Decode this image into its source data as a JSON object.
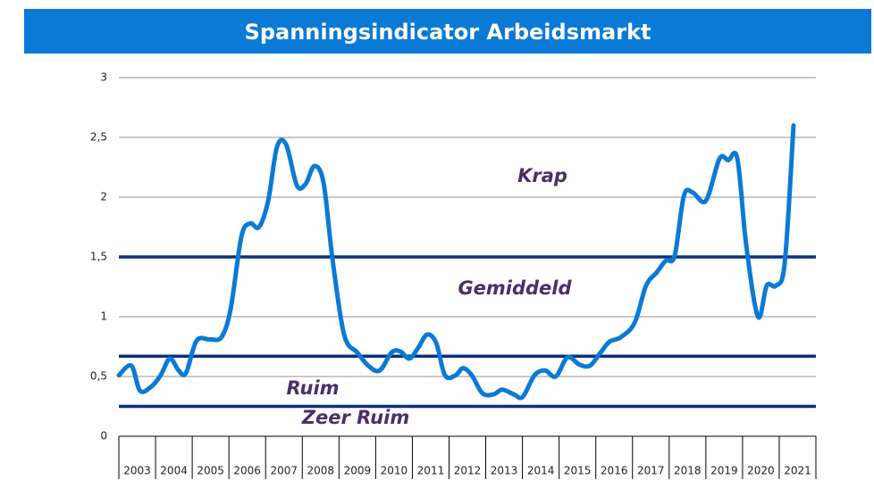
{
  "chart_data": {
    "type": "line",
    "title": "Spanningsindicator Arbeidsmarkt",
    "categories": [
      "2003",
      "2004",
      "2005",
      "2006",
      "2007",
      "2008",
      "2009",
      "2010",
      "2011",
      "2012",
      "2013",
      "2014",
      "2015",
      "2016",
      "2017",
      "2018",
      "2019",
      "2020",
      "2021"
    ],
    "xlim": [
      2003,
      2022
    ],
    "ylim": [
      0,
      3
    ],
    "yticks": [
      0,
      {
        "value": 0.5,
        "label": "0,5"
      },
      1,
      {
        "value": 1.5,
        "label": "1,5"
      },
      2,
      {
        "value": 2.5,
        "label": "2,5"
      },
      3
    ],
    "grid": true,
    "thresholds": [
      1.5,
      0.67,
      0.25
    ],
    "threshold_color": "#0b2f7a",
    "zone_labels": [
      "Krap",
      "Gemiddeld",
      "Ruim",
      "Zeer Ruim"
    ],
    "series": [
      {
        "name": "Spanningsindicator",
        "color": "#0a7ad6",
        "x": [
          2003.0,
          2003.34,
          2003.58,
          2003.9,
          2004.14,
          2004.39,
          2004.63,
          2004.83,
          2005.12,
          2005.48,
          2005.8,
          2006.05,
          2006.34,
          2006.58,
          2006.82,
          2007.07,
          2007.31,
          2007.56,
          2007.85,
          2008.09,
          2008.33,
          2008.58,
          2008.82,
          2009.14,
          2009.5,
          2009.8,
          2010.11,
          2010.43,
          2010.67,
          2010.92,
          2011.16,
          2011.4,
          2011.65,
          2011.89,
          2012.18,
          2012.38,
          2012.62,
          2012.91,
          2013.21,
          2013.45,
          2013.77,
          2014.01,
          2014.33,
          2014.62,
          2014.91,
          2015.23,
          2015.55,
          2015.84,
          2016.13,
          2016.37,
          2016.69,
          2017.06,
          2017.37,
          2017.66,
          2017.91,
          2018.15,
          2018.4,
          2018.64,
          2019.0,
          2019.37,
          2019.61,
          2019.86,
          2020.1,
          2020.42,
          2020.66,
          2020.91,
          2021.15,
          2021.39
        ],
        "values": [
          0.51,
          0.59,
          0.38,
          0.42,
          0.51,
          0.65,
          0.55,
          0.53,
          0.8,
          0.81,
          0.83,
          1.07,
          1.67,
          1.78,
          1.75,
          1.97,
          2.42,
          2.44,
          2.1,
          2.11,
          2.26,
          2.12,
          1.49,
          0.85,
          0.7,
          0.59,
          0.55,
          0.7,
          0.71,
          0.65,
          0.74,
          0.85,
          0.78,
          0.51,
          0.51,
          0.57,
          0.51,
          0.36,
          0.35,
          0.39,
          0.35,
          0.33,
          0.51,
          0.55,
          0.5,
          0.66,
          0.6,
          0.59,
          0.7,
          0.79,
          0.83,
          0.95,
          1.26,
          1.37,
          1.47,
          1.51,
          2.01,
          2.04,
          1.97,
          2.32,
          2.31,
          2.32,
          1.6,
          1.0,
          1.26,
          1.26,
          1.45,
          2.6
        ]
      }
    ]
  }
}
